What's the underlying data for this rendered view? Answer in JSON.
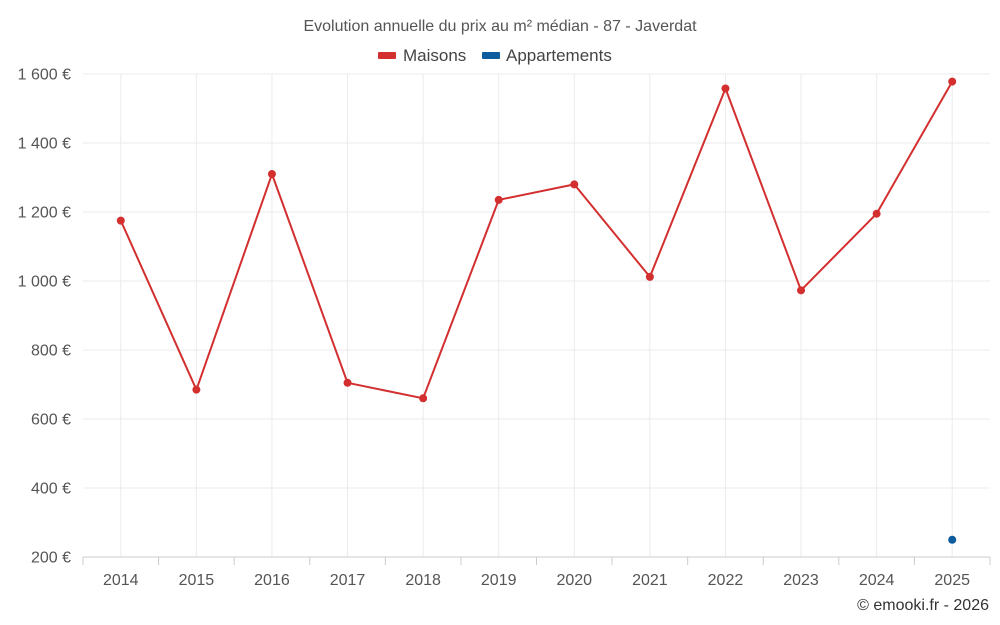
{
  "chart_data": {
    "type": "line",
    "title": "Evolution annuelle du prix au m² médian - 87 - Javerdat",
    "categories": [
      "2014",
      "2015",
      "2016",
      "2017",
      "2018",
      "2019",
      "2020",
      "2021",
      "2022",
      "2023",
      "2024",
      "2025"
    ],
    "series": [
      {
        "name": "Maisons",
        "color": "#d32f2f",
        "values": [
          1175,
          685,
          1310,
          705,
          660,
          1235,
          1280,
          1012,
          1558,
          973,
          1195,
          1578
        ]
      },
      {
        "name": "Appartements",
        "color": "#0d5c9e",
        "values": [
          null,
          null,
          null,
          null,
          null,
          null,
          null,
          null,
          null,
          null,
          null,
          250
        ]
      }
    ],
    "ylim": [
      200,
      1600
    ],
    "yticks": [
      200,
      400,
      600,
      800,
      1000,
      1200,
      1400,
      1600
    ],
    "ytick_labels": [
      "200 €",
      "400 €",
      "600 €",
      "800 €",
      "1 000 €",
      "1 200 €",
      "1 400 €",
      "1 600 €"
    ],
    "xlabel": "",
    "ylabel": "",
    "grid": true,
    "legend_position": "top-center"
  },
  "credit": "© emooki.fr - 2026"
}
